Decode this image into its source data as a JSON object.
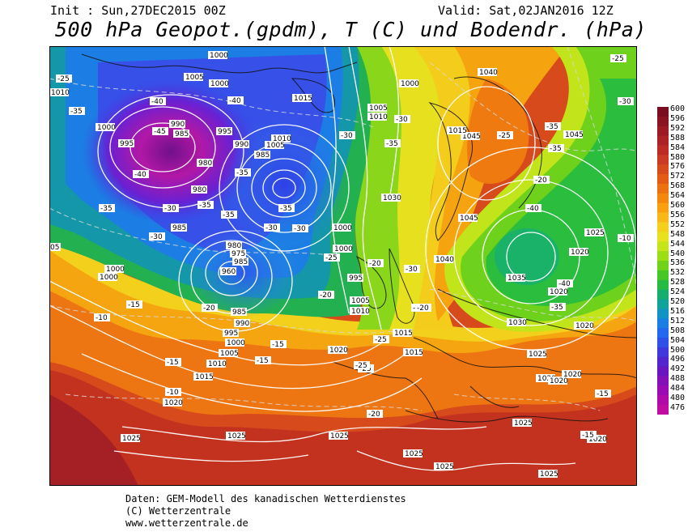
{
  "header": {
    "init": "Init : Sun,27DEC2015 00Z",
    "valid": "Valid: Sat,02JAN2016 12Z",
    "title": "500 hPa Geopot.(gpdm), T (C) und Bodendr. (hPa)"
  },
  "colorbar": {
    "levels": [
      "600",
      "596",
      "592",
      "588",
      "584",
      "580",
      "576",
      "572",
      "568",
      "564",
      "560",
      "556",
      "552",
      "548",
      "544",
      "540",
      "536",
      "532",
      "528",
      "524",
      "520",
      "516",
      "512",
      "508",
      "504",
      "500",
      "496",
      "492",
      "488",
      "484",
      "480",
      "476"
    ],
    "colors": [
      "#7a0d1f",
      "#8a1422",
      "#9c1a24",
      "#ad2226",
      "#bd2b25",
      "#cb3a22",
      "#d84a1c",
      "#e45c14",
      "#ed720f",
      "#f4880c",
      "#f8a010",
      "#f8b818",
      "#f4cf1c",
      "#e8e21e",
      "#c6e41a",
      "#9ddd16",
      "#70d21a",
      "#46c726",
      "#28bb44",
      "#16ae6c",
      "#10a39a",
      "#1293c4",
      "#1a7ee4",
      "#2468f0",
      "#3050ea",
      "#4038dc",
      "#5226cc",
      "#6a16c0",
      "#8410b8",
      "#9c0ab4",
      "#b20aa8",
      "#c00ca0"
    ]
  },
  "map_labels": {
    "pressure": [
      "1000",
      "1005",
      "1010",
      "1000",
      "1000",
      "990",
      "985",
      "995",
      "990",
      "995",
      "980",
      "980",
      "985",
      "1015",
      "1010",
      "1005",
      "985",
      "980",
      "975",
      "985",
      "960",
      "1000",
      "1005",
      "1010",
      "1015",
      "1000",
      "1000",
      "995",
      "1005",
      "1010",
      "1015",
      "1015",
      "1020",
      "1040",
      "1045",
      "1045",
      "1045",
      "1040",
      "1035",
      "1030",
      "1025",
      "1020",
      "1020",
      "1020",
      "1025",
      "1020",
      "1020",
      "1025",
      "1025",
      "1025",
      "1025",
      "1025",
      "1025",
      "1020",
      "05",
      "1000",
      "1000",
      "985",
      "990",
      "995",
      "1000",
      "1005",
      "1010",
      "1015",
      "1020",
      "1030",
      "1025",
      "1020"
    ],
    "temperature": [
      "-25",
      "-35",
      "-40",
      "-45",
      "-40",
      "-35",
      "-40",
      "-35",
      "-35",
      "-30",
      "-35",
      "-30",
      "-35",
      "-30",
      "-30",
      "-35",
      "-40",
      "-25",
      "-30",
      "-25",
      "-20",
      "-20",
      "-15",
      "-10",
      "-15",
      "-20",
      "-25",
      "-15",
      "-10",
      "-20",
      "-25",
      "-25",
      "-30",
      "-35",
      "-40",
      "-35",
      "-30",
      "-15",
      "-20",
      "-15",
      "-10",
      "-20",
      "-15",
      "-35",
      "-30",
      "-25",
      "-20"
    ]
  },
  "footer": {
    "line1": "Daten: GEM-Modell des kanadischen Wetterdienstes",
    "line2": "(C) Wetterzentrale",
    "line3": "www.wetterzentrale.de"
  }
}
